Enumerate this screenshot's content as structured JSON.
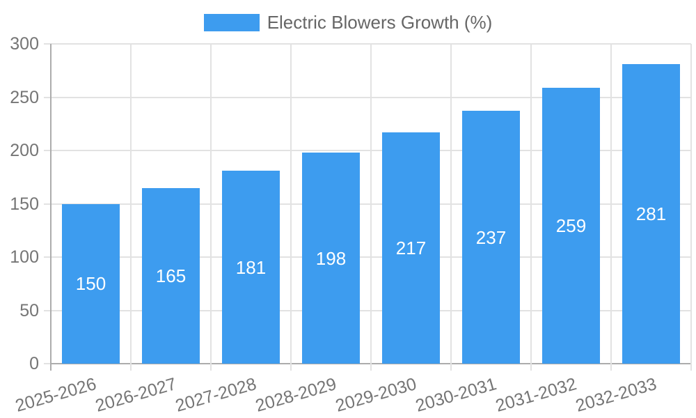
{
  "chart_data": {
    "type": "bar",
    "title": "Electric Blowers Growth (%)",
    "legend": {
      "label": "Electric Blowers Growth (%)",
      "position": "top"
    },
    "categories": [
      "2025-2026",
      "2026-2027",
      "2027-2028",
      "2028-2029",
      "2029-2030",
      "2030-2031",
      "2031-2032",
      "2032-2033"
    ],
    "values": [
      150,
      165,
      181,
      198,
      217,
      237,
      259,
      281
    ],
    "xlabel": "",
    "ylabel": "",
    "ylim": [
      0,
      300
    ],
    "y_ticks": [
      0,
      50,
      100,
      150,
      200,
      250,
      300
    ],
    "grid": "horizontal-and-vertical",
    "value_labels_shown": true,
    "x_label_rotation_deg": -16,
    "colors": {
      "bar": "#3D9CEF",
      "value_label": "#FFFFFF",
      "grid_line": "#E2E2E2",
      "axis_line": "#ACACAC",
      "tick_label": "#757575",
      "legend_text": "#666666",
      "background": "#FFFFFF"
    }
  }
}
